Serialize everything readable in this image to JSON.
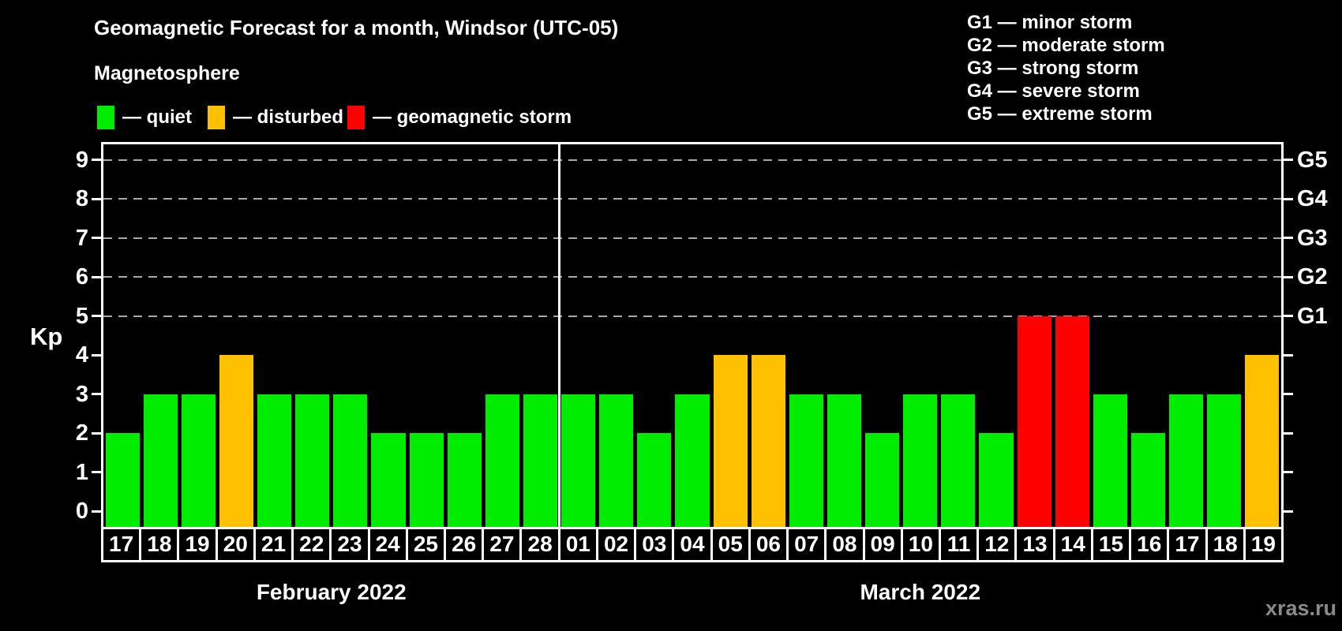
{
  "title": "Geomagnetic Forecast for a month, Windsor (UTC-05)",
  "subtitle": "Magnetosphere",
  "legend": {
    "items": [
      {
        "name": "quiet",
        "label": "— quiet",
        "color": "#00ec00"
      },
      {
        "name": "disturbed",
        "label": "— disturbed",
        "color": "#ffc000"
      },
      {
        "name": "storm",
        "label": "— geomagnetic storm",
        "color": "#ff0000"
      }
    ]
  },
  "g_legend": [
    "G1 — minor storm",
    "G2 — moderate storm",
    "G3 — strong storm",
    "G4 — severe storm",
    "G5 — extreme storm"
  ],
  "watermark": "xras.ru",
  "chart_data": {
    "type": "bar",
    "title": "Geomagnetic Forecast for a month, Windsor (UTC-05)",
    "ylabel": "Kp",
    "ylim": [
      0,
      9
    ],
    "axis_draw_range": [
      -0.4,
      9.4
    ],
    "y_ticks": [
      0,
      1,
      2,
      3,
      4,
      5,
      6,
      7,
      8,
      9
    ],
    "right_axis_labels": {
      "5": "G1",
      "6": "G2",
      "7": "G3",
      "8": "G4",
      "9": "G5"
    },
    "gridlines_at": [
      5,
      6,
      7,
      8,
      9
    ],
    "grid": "dashed horizontal gray lines at Kp 5-9 only",
    "legend_position": "top-left swatches; G-scale list top-right",
    "status_colors": {
      "quiet": "#00ec00",
      "disturbed": "#ffc000",
      "storm": "#ff0000"
    },
    "months": [
      {
        "label": "February 2022",
        "days": [
          "17",
          "18",
          "19",
          "20",
          "21",
          "22",
          "23",
          "24",
          "25",
          "26",
          "27",
          "28"
        ],
        "values": [
          2,
          3,
          3,
          4,
          3,
          3,
          3,
          2,
          2,
          2,
          3,
          3
        ],
        "statuses": [
          "quiet",
          "quiet",
          "quiet",
          "disturbed",
          "quiet",
          "quiet",
          "quiet",
          "quiet",
          "quiet",
          "quiet",
          "quiet",
          "quiet"
        ]
      },
      {
        "label": "March 2022",
        "days": [
          "01",
          "02",
          "03",
          "04",
          "05",
          "06",
          "07",
          "08",
          "09",
          "10",
          "11",
          "12",
          "13",
          "14",
          "15",
          "16",
          "17",
          "18",
          "19"
        ],
        "values": [
          3,
          3,
          2,
          3,
          4,
          4,
          3,
          3,
          2,
          3,
          3,
          2,
          5,
          5,
          3,
          2,
          3,
          3,
          4
        ],
        "statuses": [
          "quiet",
          "quiet",
          "quiet",
          "quiet",
          "disturbed",
          "disturbed",
          "quiet",
          "quiet",
          "quiet",
          "quiet",
          "quiet",
          "quiet",
          "storm",
          "storm",
          "quiet",
          "quiet",
          "quiet",
          "quiet",
          "disturbed"
        ]
      }
    ]
  }
}
